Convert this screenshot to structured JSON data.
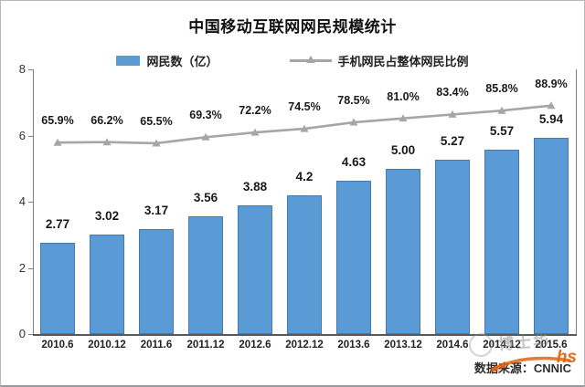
{
  "title": "中国移动互联网网民规模统计",
  "legend": {
    "bar_label": "网民数（亿）",
    "line_label": "手机网民占整体网民比例"
  },
  "footer": {
    "source": "数据来源：CNNIC"
  },
  "watermark": {
    "text": "博士华",
    "accent": "hs"
  },
  "colors": {
    "bar": "#5B9BD5",
    "line": "#A6A6A6",
    "axis": "#808080",
    "baseline": "#595959"
  },
  "y_axis": {
    "tick_labels": [
      "0",
      "2",
      "4",
      "6",
      "8"
    ]
  },
  "chart_data": {
    "type": "bar",
    "title": "中国移动互联网网民规模统计",
    "categories": [
      "2010.6",
      "2010.12",
      "2011.6",
      "2011.12",
      "2012.6",
      "2012.12",
      "2013.6",
      "2013.12",
      "2014.6",
      "2014.12",
      "2015.6"
    ],
    "series": [
      {
        "name": "网民数（亿）",
        "type": "bar",
        "values": [
          2.77,
          3.02,
          3.17,
          3.56,
          3.88,
          4.2,
          4.63,
          5.0,
          5.27,
          5.57,
          5.94
        ],
        "labels": [
          "2.77",
          "3.02",
          "3.17",
          "3.56",
          "3.88",
          "4.2",
          "4.63",
          "5.00",
          "5.27",
          "5.57",
          "5.94"
        ],
        "axis": "primary"
      },
      {
        "name": "手机网民占整体网民比例",
        "type": "line",
        "values": [
          65.9,
          66.2,
          65.5,
          69.3,
          72.2,
          74.5,
          78.5,
          81.0,
          83.4,
          85.8,
          88.9
        ],
        "labels": [
          "65.9%",
          "66.2%",
          "65.5%",
          "69.3%",
          "72.2%",
          "74.5%",
          "78.5%",
          "81.0%",
          "83.4%",
          "85.8%",
          "88.9%"
        ],
        "axis": "secondary_percent"
      }
    ],
    "ylim": [
      0,
      8
    ],
    "yticks": [
      0,
      2,
      4,
      6,
      8
    ],
    "grid": false,
    "legend_position": "top",
    "xlabel": "",
    "ylabel": "",
    "source": "数据来源：CNNIC"
  }
}
